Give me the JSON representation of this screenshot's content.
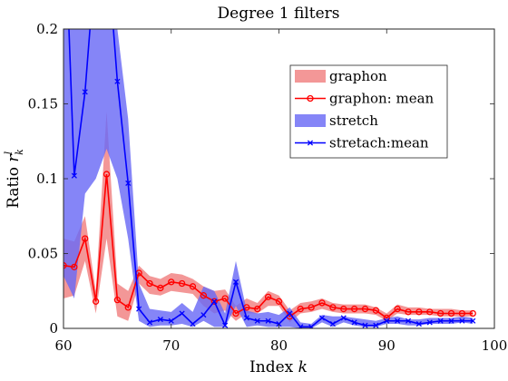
{
  "chart_data": {
    "type": "line",
    "title": "Degree 1 filters",
    "xlabel_main": "Index ",
    "xlabel_var": "k",
    "ylabel_main": "Ratio ",
    "ylabel_var": "r",
    "ylabel_sup": "l",
    "ylabel_sub": "k",
    "xlim": [
      60,
      100
    ],
    "ylim": [
      0,
      0.2
    ],
    "xticks": [
      60,
      70,
      80,
      90,
      100
    ],
    "xtick_labels": [
      "60",
      "70",
      "80",
      "90",
      "100"
    ],
    "yticks": [
      0,
      0.05,
      0.1,
      0.15,
      0.2
    ],
    "ytick_labels": [
      "0",
      "0.05",
      "0.1",
      "0.15",
      "0.2"
    ],
    "legend_position": "top-right",
    "x": [
      60,
      61,
      62,
      63,
      64,
      65,
      66,
      67,
      68,
      69,
      70,
      71,
      72,
      73,
      74,
      75,
      76,
      77,
      78,
      79,
      80,
      81,
      82,
      83,
      84,
      85,
      86,
      87,
      88,
      89,
      90,
      91,
      92,
      93,
      94,
      95,
      96,
      97,
      98
    ],
    "series": [
      {
        "name": "graphon",
        "kind": "band",
        "color": "#f08080",
        "lower": [
          0.02,
          0.022,
          0.045,
          0.01,
          0.06,
          0.008,
          0.005,
          0.03,
          0.023,
          0.022,
          0.025,
          0.024,
          0.023,
          0.015,
          0.01,
          0.012,
          0.005,
          0.01,
          0.01,
          0.015,
          0.015,
          0.004,
          0.01,
          0.011,
          0.013,
          0.011,
          0.01,
          0.01,
          0.01,
          0.009,
          0.005,
          0.01,
          0.009,
          0.009,
          0.009,
          0.008,
          0.008,
          0.008,
          0.008
        ],
        "upper": [
          0.06,
          0.058,
          0.075,
          0.025,
          0.145,
          0.03,
          0.025,
          0.042,
          0.035,
          0.033,
          0.037,
          0.036,
          0.033,
          0.028,
          0.025,
          0.026,
          0.015,
          0.02,
          0.017,
          0.025,
          0.022,
          0.012,
          0.017,
          0.018,
          0.02,
          0.017,
          0.016,
          0.016,
          0.016,
          0.014,
          0.01,
          0.016,
          0.014,
          0.014,
          0.013,
          0.013,
          0.013,
          0.012,
          0.012
        ]
      },
      {
        "name": "graphon:  mean",
        "kind": "line",
        "marker": "circle",
        "color": "#ff0000",
        "values": [
          0.042,
          0.041,
          0.06,
          0.018,
          0.103,
          0.019,
          0.014,
          0.037,
          0.03,
          0.027,
          0.031,
          0.03,
          0.028,
          0.022,
          0.018,
          0.02,
          0.01,
          0.014,
          0.013,
          0.021,
          0.018,
          0.008,
          0.013,
          0.014,
          0.017,
          0.014,
          0.013,
          0.013,
          0.013,
          0.012,
          0.007,
          0.013,
          0.011,
          0.011,
          0.011,
          0.01,
          0.01,
          0.01,
          0.01
        ]
      },
      {
        "name": "stretch",
        "kind": "band",
        "color": "#6a6af5",
        "lower": [
          0.035,
          0.02,
          0.09,
          0.1,
          0.12,
          0.1,
          0.06,
          0.005,
          0.001,
          0.002,
          0.002,
          0.003,
          0.001,
          0.005,
          0.001,
          0.001,
          0.015,
          0.001,
          0.002,
          0.001,
          0.001,
          0.001,
          0.0,
          0.0,
          0.004,
          0.001,
          0.004,
          0.002,
          0.001,
          0.001,
          0.003,
          0.003,
          0.002,
          0.002,
          0.003,
          0.003,
          0.003,
          0.004,
          0.003
        ],
        "upper": [
          0.2,
          0.2,
          0.2,
          0.2,
          0.2,
          0.2,
          0.14,
          0.03,
          0.013,
          0.012,
          0.011,
          0.017,
          0.011,
          0.028,
          0.025,
          0.01,
          0.045,
          0.012,
          0.01,
          0.011,
          0.009,
          0.014,
          0.004,
          0.003,
          0.009,
          0.008,
          0.008,
          0.007,
          0.006,
          0.005,
          0.007,
          0.008,
          0.006,
          0.006,
          0.007,
          0.007,
          0.007,
          0.008,
          0.007
        ]
      },
      {
        "name": "stretach:mean",
        "kind": "line",
        "marker": "x",
        "color": "#0000ff",
        "values": [
          0.3,
          0.102,
          0.158,
          0.25,
          0.26,
          0.165,
          0.097,
          0.013,
          0.004,
          0.006,
          0.005,
          0.01,
          0.003,
          0.009,
          0.018,
          0.002,
          0.031,
          0.007,
          0.005,
          0.005,
          0.003,
          0.01,
          0.001,
          0.001,
          0.007,
          0.003,
          0.007,
          0.004,
          0.002,
          0.002,
          0.005,
          0.005,
          0.005,
          0.003,
          0.004,
          0.005,
          0.005,
          0.005,
          0.005
        ]
      }
    ]
  }
}
